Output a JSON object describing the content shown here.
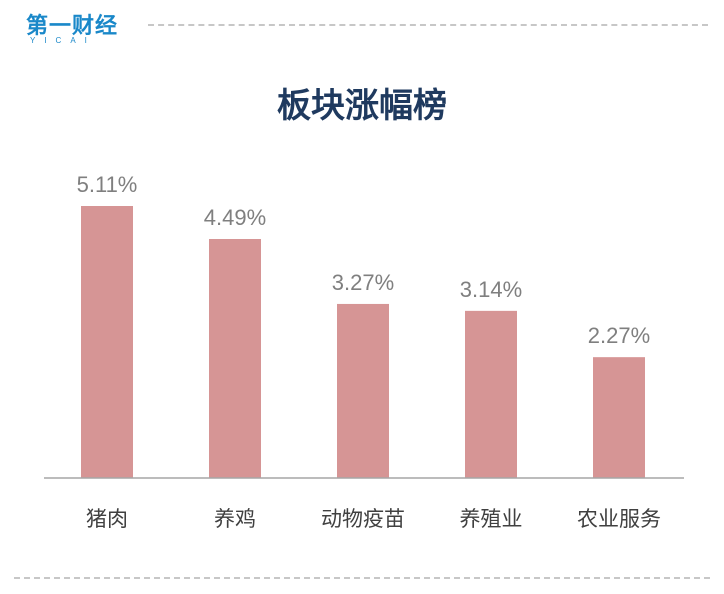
{
  "brand": {
    "logo_text": "第一财经",
    "logo_sub": "YICAI"
  },
  "colors": {
    "bar": "#d69595",
    "value_label": "#7f7f7f",
    "category_label": "#404040",
    "title": "#1f3a5f",
    "axis": "#a6a6a6",
    "brand": "#1a88c9"
  },
  "chart_data": {
    "type": "bar",
    "title": "板块涨幅榜",
    "categories": [
      "猪肉",
      "养鸡",
      "动物疫苗",
      "养殖业",
      "农业服务"
    ],
    "values": [
      5.11,
      4.49,
      3.27,
      3.14,
      2.27
    ],
    "value_labels": [
      "5.11%",
      "4.49%",
      "3.27%",
      "3.14%",
      "2.27%"
    ],
    "xlabel": "",
    "ylabel": "",
    "ylim": [
      0,
      5.11
    ],
    "grid": false,
    "legend": "none"
  }
}
